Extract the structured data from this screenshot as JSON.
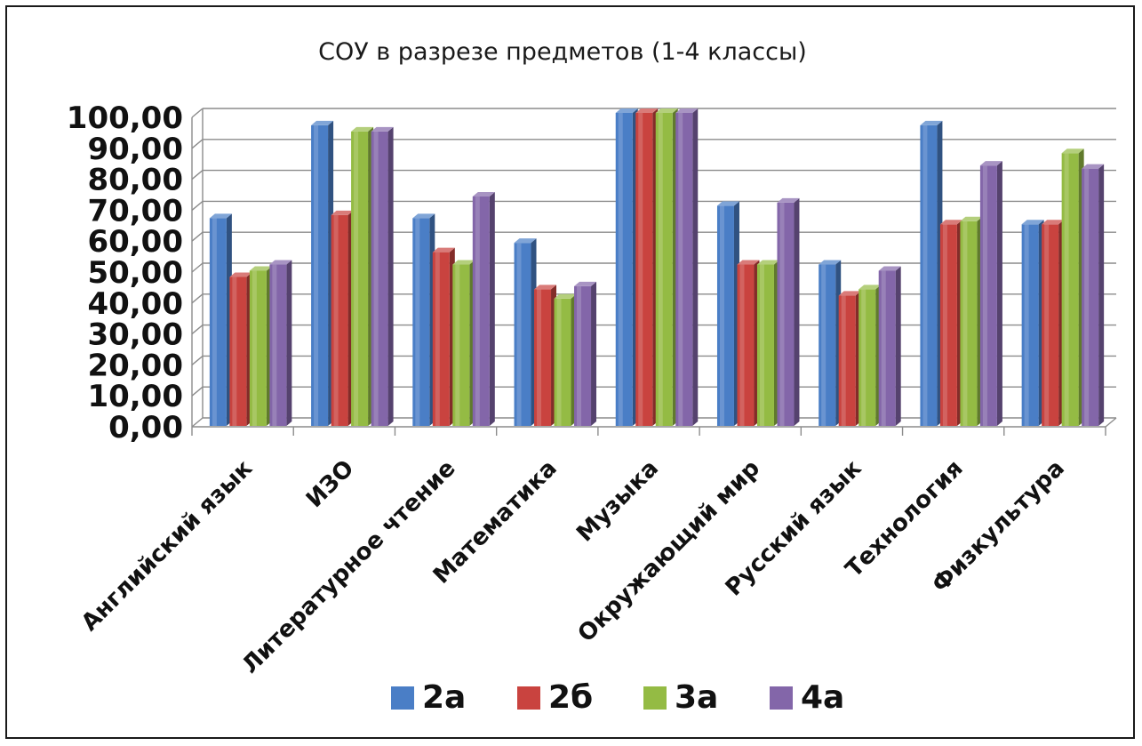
{
  "chart_data": {
    "type": "bar",
    "title": "СОУ в разрезе предметов (1-4 классы)",
    "xlabel": "",
    "ylabel": "",
    "ylim": [
      0,
      100
    ],
    "yticks": [
      "0,00",
      "10,00",
      "20,00",
      "30,00",
      "40,00",
      "50,00",
      "60,00",
      "70,00",
      "80,00",
      "90,00",
      "100,00"
    ],
    "grid": true,
    "legend": "bottom",
    "categories": [
      "Английский язык",
      "ИЗО",
      "Литературное чтение",
      "Математика",
      "Музыка",
      "Окружающий мир",
      "Русский язык",
      "Технология",
      "Физкультура"
    ],
    "series": [
      {
        "name": "2а",
        "color": "#4a7ec6",
        "values": [
          66,
          96,
          66,
          58,
          100,
          70,
          51,
          96,
          64
        ]
      },
      {
        "name": "2б",
        "color": "#c9433f",
        "values": [
          47,
          67,
          55,
          43,
          100,
          51,
          41,
          64,
          64
        ]
      },
      {
        "name": "3а",
        "color": "#94bb44",
        "values": [
          49,
          94,
          51,
          40,
          100,
          51,
          43,
          65,
          87
        ]
      },
      {
        "name": "4а",
        "color": "#8366a9",
        "values": [
          51,
          94,
          73,
          44,
          100,
          71,
          49,
          83,
          82
        ]
      }
    ]
  }
}
